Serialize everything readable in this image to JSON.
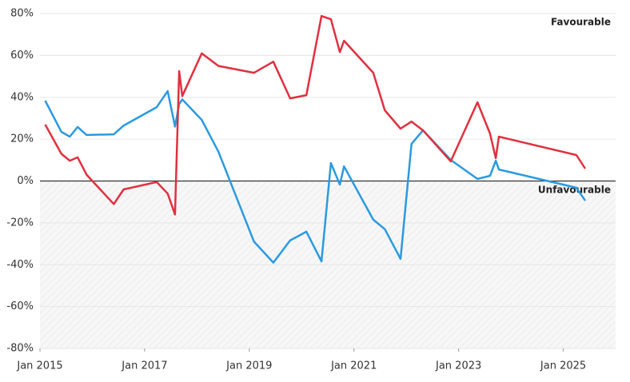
{
  "chart_data": {
    "type": "line",
    "annotations": [
      "Favourable",
      "Unfavourable"
    ],
    "x": [
      2015.1,
      2015.41,
      2015.57,
      2015.72,
      2015.89,
      2016.41,
      2016.6,
      2017.23,
      2017.44,
      2017.58,
      2017.66,
      2017.72,
      2018.09,
      2018.41,
      2019.09,
      2019.46,
      2019.78,
      2020.09,
      2020.38,
      2020.56,
      2020.73,
      2020.81,
      2021.37,
      2021.59,
      2021.89,
      2022.1,
      2022.32,
      2022.85,
      2023.36,
      2023.6,
      2023.71,
      2023.77,
      2025.25,
      2025.42
    ],
    "series": [
      {
        "color": "#e0303f",
        "values": [
          27,
          13,
          9.7,
          11.3,
          3,
          -11,
          -4,
          -0.5,
          -6,
          -16,
          52.5,
          40.6,
          61,
          55,
          51.7,
          57,
          39.5,
          41,
          78.8,
          77.3,
          61.6,
          67,
          51.7,
          33.8,
          25,
          28.4,
          24.2,
          9.4,
          37.6,
          22.7,
          10.9,
          21.2,
          12.4,
          5.9
        ]
      },
      {
        "color": "#2b9ae0",
        "values": [
          38.4,
          23.5,
          21.2,
          25.8,
          22,
          22.3,
          26.5,
          35.3,
          43,
          26,
          36.8,
          39,
          29.2,
          14,
          -29,
          -39,
          -28.4,
          -24.2,
          -38.4,
          8.6,
          -1.7,
          7,
          -18.5,
          -23,
          -37.2,
          17.7,
          24.2,
          10.1,
          1,
          2.5,
          9.7,
          5.5,
          -3.2,
          -9.4
        ]
      }
    ],
    "xlim": [
      2015,
      2026
    ],
    "xticks": [
      {
        "value": 2015,
        "label": "Jan 2015"
      },
      {
        "value": 2017,
        "label": "Jan 2017"
      },
      {
        "value": 2019,
        "label": "Jan 2019"
      },
      {
        "value": 2021,
        "label": "Jan 2021"
      },
      {
        "value": 2023,
        "label": "Jan 2023"
      },
      {
        "value": 2025,
        "label": "Jan 2025"
      }
    ],
    "ylim": [
      -80,
      80
    ],
    "yticks": [
      {
        "value": -80,
        "label": "-80%"
      },
      {
        "value": -60,
        "label": "-60%"
      },
      {
        "value": -40,
        "label": "-40%"
      },
      {
        "value": -20,
        "label": "-20%"
      },
      {
        "value": 0,
        "label": "0%"
      },
      {
        "value": 20,
        "label": "20%"
      },
      {
        "value": 40,
        "label": "40%"
      },
      {
        "value": 60,
        "label": "60%"
      },
      {
        "value": 80,
        "label": "80%"
      }
    ],
    "grid": true
  }
}
